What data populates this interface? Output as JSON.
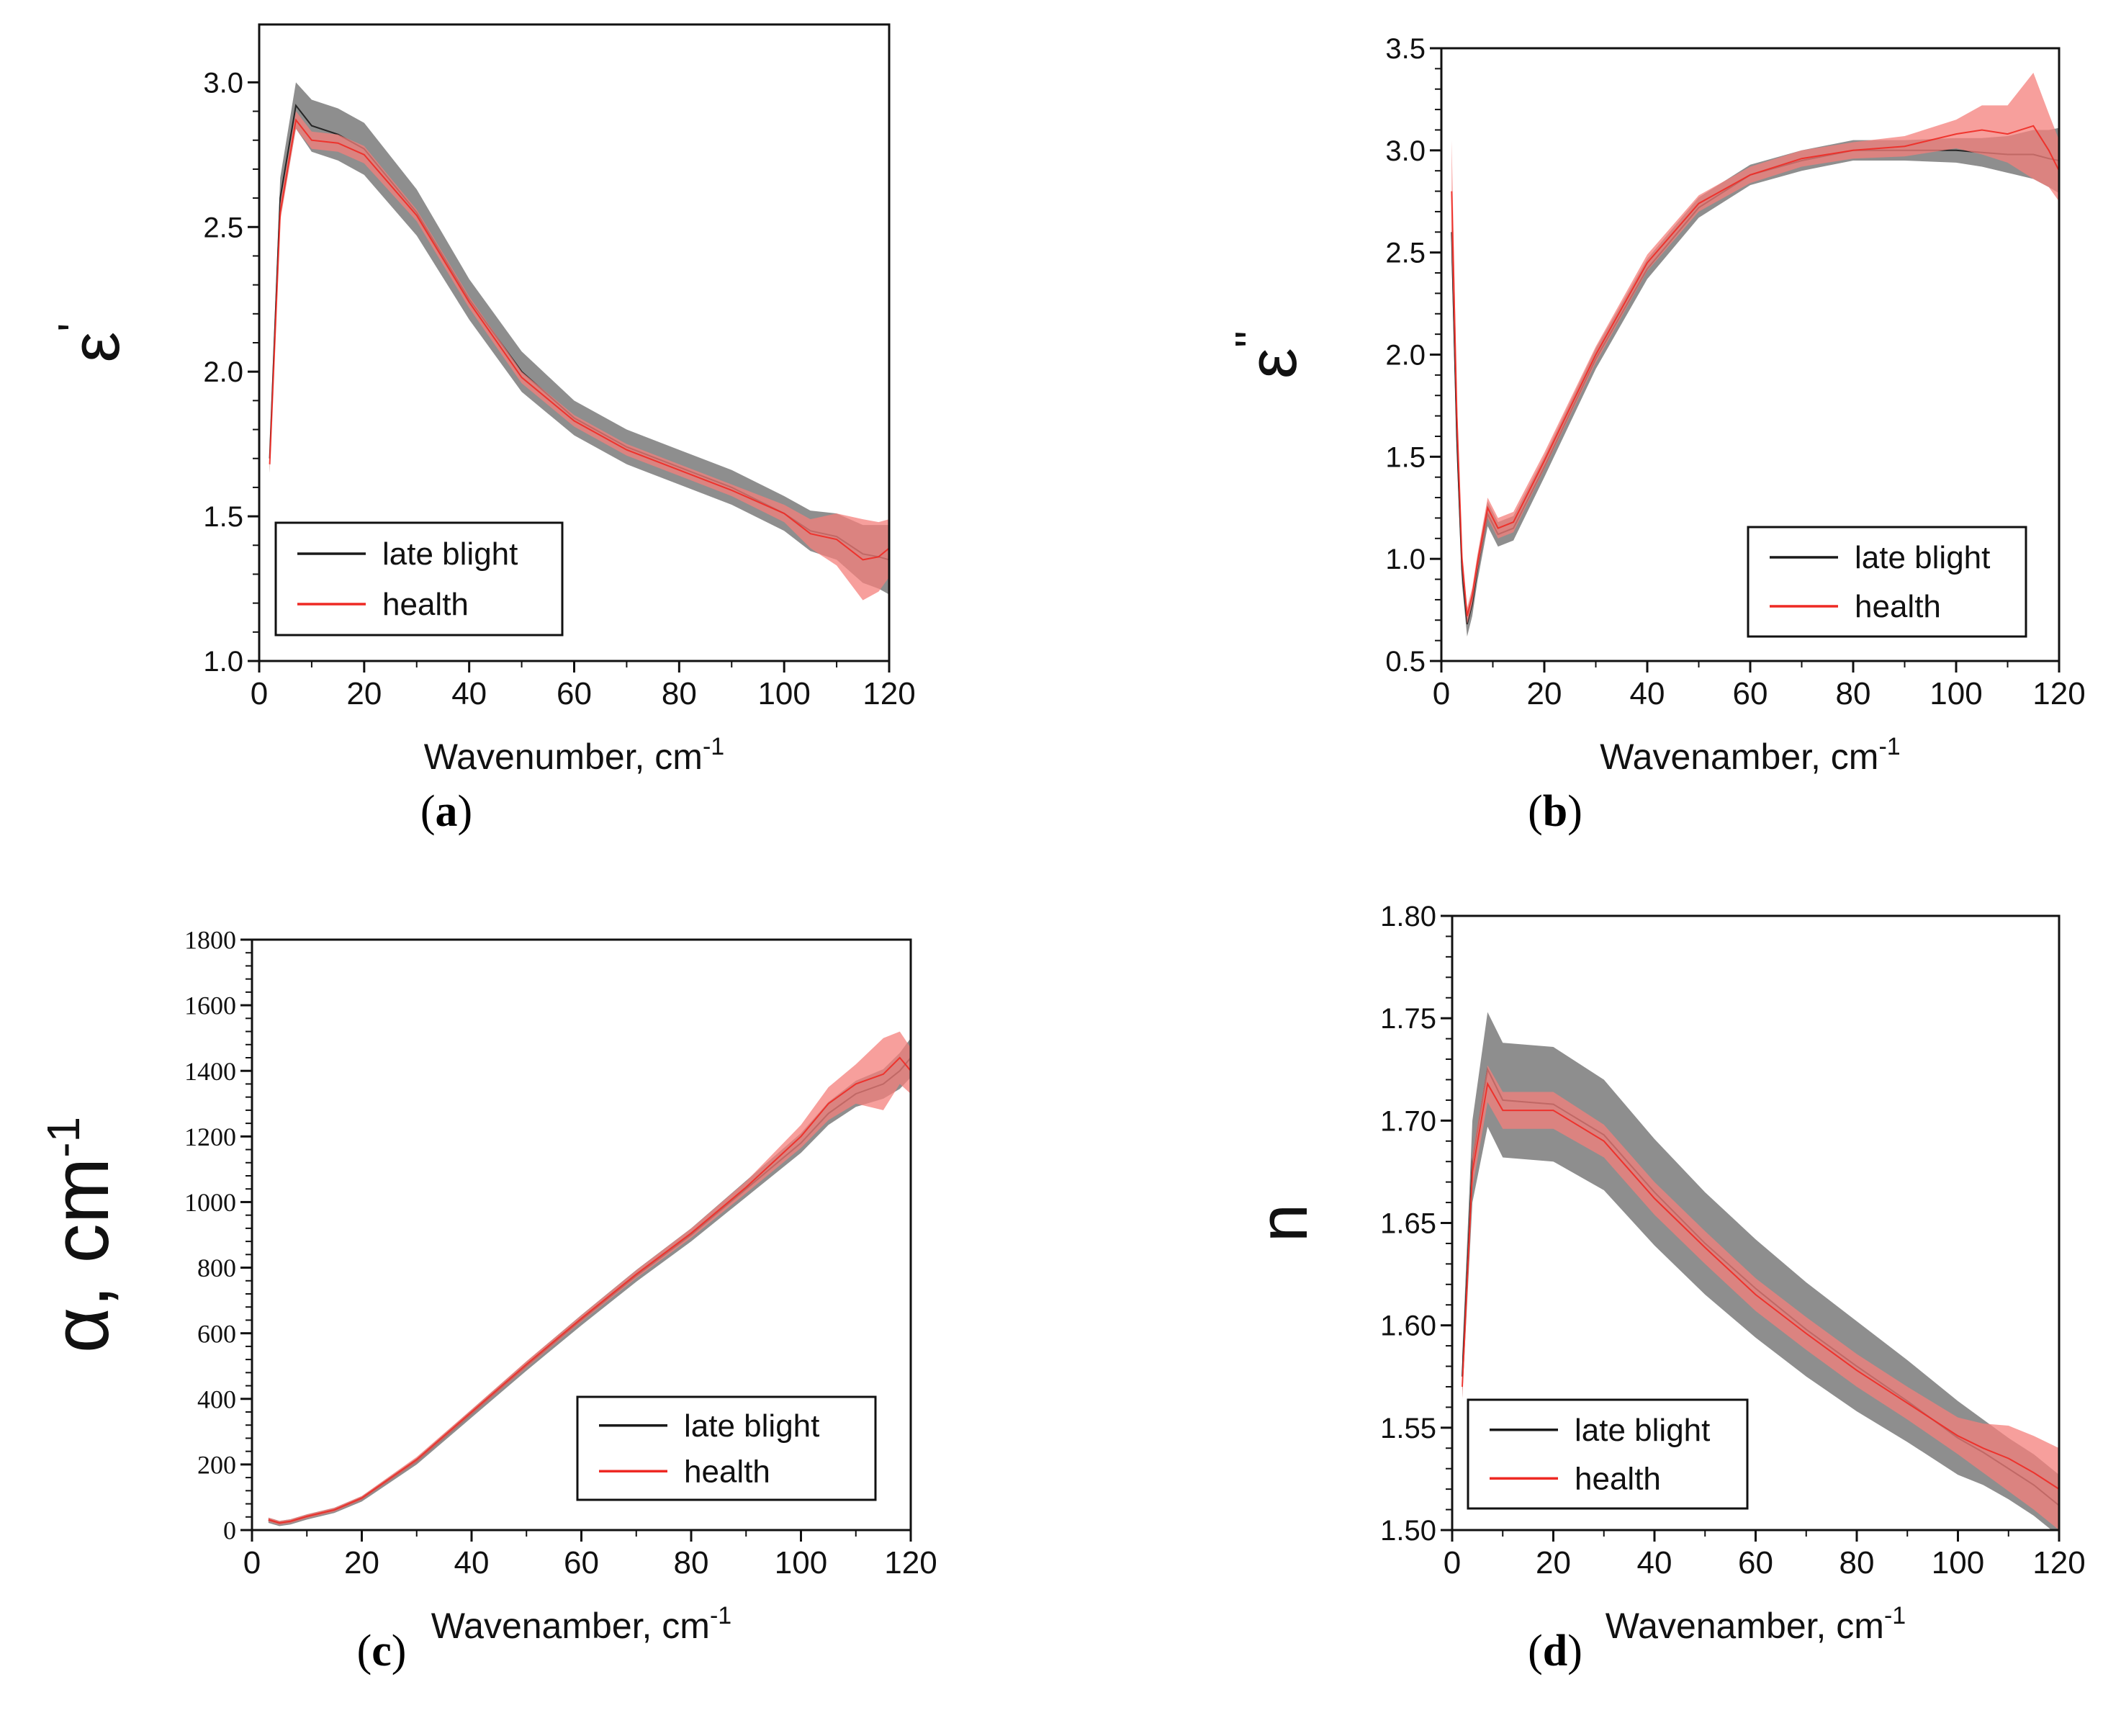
{
  "colors": {
    "late_blight_line": "#1a1a1a",
    "late_blight_band": "#7a7a7a",
    "health_line": "#ee2a24",
    "health_band": "#f47f7b"
  },
  "chart_data": [
    {
      "id": "a",
      "type": "line",
      "caption_letter": "a",
      "ylabel_main": "ε",
      "ylabel_sup": "'",
      "xlabel_main": "Wavenumber, cm",
      "xlabel_sup": "-1",
      "xlim": [
        0,
        120
      ],
      "ylim": [
        1.0,
        3.2
      ],
      "xticks": [
        0,
        20,
        40,
        60,
        80,
        100,
        120
      ],
      "yticks": [
        1.0,
        1.5,
        2.0,
        2.5,
        3.0
      ],
      "ytick_labels": [
        "1.0",
        "1.5",
        "2.0",
        "2.5",
        "3.0"
      ],
      "legend_position": "bottom-left",
      "legend": [
        "late blight",
        "health"
      ],
      "series": [
        {
          "name": "late blight",
          "x": [
            2,
            4,
            7,
            10,
            15,
            20,
            30,
            40,
            50,
            60,
            70,
            80,
            90,
            100,
            105,
            110,
            115,
            118,
            120
          ],
          "y": [
            1.7,
            2.6,
            2.92,
            2.85,
            2.82,
            2.77,
            2.55,
            2.25,
            2.0,
            1.84,
            1.74,
            1.67,
            1.6,
            1.51,
            1.45,
            1.43,
            1.37,
            1.36,
            1.35
          ],
          "err": [
            0.05,
            0.07,
            0.08,
            0.09,
            0.09,
            0.09,
            0.08,
            0.07,
            0.07,
            0.06,
            0.06,
            0.06,
            0.06,
            0.06,
            0.07,
            0.08,
            0.1,
            0.11,
            0.12
          ]
        },
        {
          "name": "health",
          "x": [
            2,
            4,
            7,
            10,
            15,
            20,
            30,
            40,
            50,
            60,
            70,
            80,
            90,
            100,
            105,
            110,
            115,
            118,
            120
          ],
          "y": [
            1.68,
            2.55,
            2.87,
            2.8,
            2.79,
            2.75,
            2.54,
            2.24,
            1.98,
            1.83,
            1.73,
            1.66,
            1.59,
            1.51,
            1.44,
            1.42,
            1.35,
            1.36,
            1.39
          ],
          "err": [
            0.03,
            0.03,
            0.03,
            0.03,
            0.03,
            0.03,
            0.02,
            0.02,
            0.02,
            0.02,
            0.02,
            0.02,
            0.02,
            0.03,
            0.05,
            0.09,
            0.14,
            0.12,
            0.1
          ]
        }
      ]
    },
    {
      "id": "b",
      "type": "line",
      "caption_letter": "b",
      "ylabel_main": "ε",
      "ylabel_sup": "''",
      "xlabel_main": "Wavenamber, cm",
      "xlabel_sup": "-1",
      "xlim": [
        0,
        120
      ],
      "ylim": [
        0.5,
        3.5
      ],
      "xticks": [
        0,
        20,
        40,
        60,
        80,
        100,
        120
      ],
      "yticks": [
        0.5,
        1.0,
        1.5,
        2.0,
        2.5,
        3.0,
        3.5
      ],
      "ytick_labels": [
        "0.5",
        "1.0",
        "1.5",
        "2.0",
        "2.5",
        "3.0",
        "3.5"
      ],
      "legend_position": "bottom-right",
      "legend": [
        "late blight",
        "health"
      ],
      "series": [
        {
          "name": "late blight",
          "x": [
            2,
            3,
            4,
            5,
            6,
            7,
            9,
            11,
            14,
            20,
            30,
            40,
            50,
            60,
            70,
            80,
            90,
            100,
            105,
            110,
            115,
            118,
            120
          ],
          "y": [
            2.6,
            1.6,
            0.95,
            0.68,
            0.78,
            0.95,
            1.22,
            1.12,
            1.15,
            1.45,
            1.98,
            2.42,
            2.72,
            2.88,
            2.95,
            3.0,
            3.0,
            3.0,
            2.99,
            2.98,
            2.98,
            2.96,
            2.95
          ],
          "err": [
            0.15,
            0.1,
            0.07,
            0.06,
            0.06,
            0.06,
            0.06,
            0.06,
            0.06,
            0.05,
            0.05,
            0.05,
            0.05,
            0.05,
            0.05,
            0.05,
            0.05,
            0.06,
            0.07,
            0.09,
            0.12,
            0.14,
            0.16
          ]
        },
        {
          "name": "health",
          "x": [
            2,
            3,
            4,
            5,
            6,
            7,
            9,
            11,
            14,
            20,
            30,
            40,
            50,
            60,
            70,
            80,
            90,
            100,
            105,
            110,
            115,
            118,
            120
          ],
          "y": [
            2.8,
            1.7,
            1.0,
            0.72,
            0.82,
            0.98,
            1.25,
            1.15,
            1.18,
            1.48,
            2.0,
            2.45,
            2.74,
            2.88,
            2.96,
            3.0,
            3.02,
            3.08,
            3.1,
            3.08,
            3.12,
            3.0,
            2.9
          ],
          "err": [
            0.25,
            0.1,
            0.05,
            0.04,
            0.04,
            0.04,
            0.05,
            0.05,
            0.05,
            0.04,
            0.04,
            0.04,
            0.04,
            0.04,
            0.04,
            0.04,
            0.05,
            0.07,
            0.12,
            0.14,
            0.26,
            0.18,
            0.15
          ]
        }
      ]
    },
    {
      "id": "c",
      "type": "line",
      "caption_letter": "c",
      "ylabel_main": "α, cm",
      "ylabel_sup": "-1",
      "xlabel_main": "Wavenamber, cm",
      "xlabel_sup": "-1",
      "xlim": [
        0,
        120
      ],
      "ylim": [
        0,
        1800
      ],
      "xticks": [
        0,
        20,
        40,
        60,
        80,
        100,
        120
      ],
      "yticks": [
        0,
        200,
        400,
        600,
        800,
        1000,
        1200,
        1400,
        1600,
        1800
      ],
      "ytick_labels": [
        "0",
        "200",
        "400",
        "600",
        "800",
        "1000",
        "1200",
        "1400",
        "1600",
        "1800"
      ],
      "legend_position": "bottom-right",
      "legend": [
        "late blight",
        "health"
      ],
      "series": [
        {
          "name": "late blight",
          "x": [
            3,
            5,
            7,
            10,
            15,
            20,
            30,
            40,
            50,
            60,
            70,
            80,
            90,
            100,
            105,
            110,
            115,
            118,
            120
          ],
          "y": [
            30,
            20,
            25,
            40,
            60,
            95,
            210,
            355,
            500,
            640,
            775,
            900,
            1040,
            1180,
            1270,
            1330,
            1360,
            1400,
            1440
          ],
          "err": [
            8,
            8,
            8,
            8,
            8,
            8,
            10,
            12,
            14,
            16,
            18,
            20,
            25,
            30,
            35,
            40,
            45,
            55,
            60
          ]
        },
        {
          "name": "health",
          "x": [
            3,
            5,
            7,
            10,
            15,
            20,
            30,
            40,
            50,
            60,
            70,
            80,
            90,
            100,
            105,
            110,
            115,
            118,
            120
          ],
          "y": [
            32,
            22,
            27,
            42,
            62,
            98,
            215,
            360,
            505,
            645,
            780,
            905,
            1045,
            1200,
            1300,
            1360,
            1390,
            1440,
            1400
          ],
          "err": [
            6,
            6,
            6,
            6,
            6,
            6,
            8,
            8,
            10,
            10,
            12,
            14,
            18,
            35,
            50,
            60,
            110,
            80,
            70
          ]
        }
      ]
    },
    {
      "id": "d",
      "type": "line",
      "caption_letter": "d",
      "ylabel_main": "n",
      "ylabel_sup": "",
      "xlabel_main": "Wavenamber, cm",
      "xlabel_sup": "-1",
      "xlim": [
        0,
        120
      ],
      "ylim": [
        1.5,
        1.8
      ],
      "xticks": [
        0,
        20,
        40,
        60,
        80,
        100,
        120
      ],
      "yticks": [
        1.5,
        1.55,
        1.6,
        1.65,
        1.7,
        1.75,
        1.8
      ],
      "ytick_labels": [
        "1.50",
        "1.55",
        "1.60",
        "1.65",
        "1.70",
        "1.75",
        "1.80"
      ],
      "legend_position": "bottom-left",
      "legend": [
        "late blight",
        "health"
      ],
      "series": [
        {
          "name": "late blight",
          "x": [
            2,
            4,
            7,
            10,
            20,
            30,
            40,
            50,
            60,
            70,
            80,
            90,
            100,
            105,
            110,
            115,
            120
          ],
          "y": [
            1.575,
            1.68,
            1.725,
            1.71,
            1.708,
            1.693,
            1.665,
            1.64,
            1.618,
            1.598,
            1.58,
            1.563,
            1.545,
            1.538,
            1.53,
            1.522,
            1.512
          ],
          "err": [
            0.01,
            0.02,
            0.028,
            0.028,
            0.028,
            0.027,
            0.026,
            0.025,
            0.024,
            0.023,
            0.022,
            0.02,
            0.018,
            0.016,
            0.015,
            0.015,
            0.015
          ]
        },
        {
          "name": "health",
          "x": [
            2,
            4,
            7,
            10,
            20,
            30,
            40,
            50,
            60,
            70,
            80,
            90,
            100,
            105,
            110,
            115,
            120
          ],
          "y": [
            1.57,
            1.675,
            1.718,
            1.705,
            1.705,
            1.69,
            1.662,
            1.638,
            1.615,
            1.596,
            1.578,
            1.562,
            1.546,
            1.54,
            1.535,
            1.528,
            1.52
          ],
          "err": [
            0.006,
            0.008,
            0.009,
            0.009,
            0.009,
            0.008,
            0.008,
            0.008,
            0.008,
            0.008,
            0.008,
            0.008,
            0.009,
            0.012,
            0.016,
            0.018,
            0.02
          ]
        }
      ]
    }
  ]
}
